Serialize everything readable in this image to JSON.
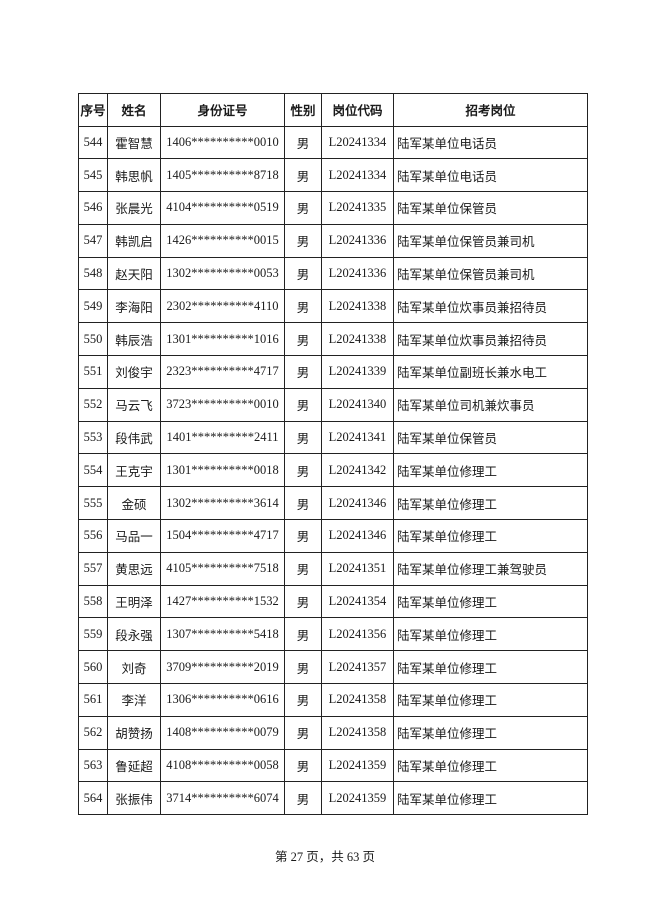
{
  "table": {
    "headers": [
      "序号",
      "姓名",
      "身份证号",
      "性别",
      "岗位代码",
      "招考岗位"
    ],
    "rows": [
      [
        "544",
        "霍智慧",
        "1406**********0010",
        "男",
        "L20241334",
        "陆军某单位电话员"
      ],
      [
        "545",
        "韩思帆",
        "1405**********8718",
        "男",
        "L20241334",
        "陆军某单位电话员"
      ],
      [
        "546",
        "张晨光",
        "4104**********0519",
        "男",
        "L20241335",
        "陆军某单位保管员"
      ],
      [
        "547",
        "韩凯启",
        "1426**********0015",
        "男",
        "L20241336",
        "陆军某单位保管员兼司机"
      ],
      [
        "548",
        "赵天阳",
        "1302**********0053",
        "男",
        "L20241336",
        "陆军某单位保管员兼司机"
      ],
      [
        "549",
        "李海阳",
        "2302**********4110",
        "男",
        "L20241338",
        "陆军某单位炊事员兼招待员"
      ],
      [
        "550",
        "韩辰浩",
        "1301**********1016",
        "男",
        "L20241338",
        "陆军某单位炊事员兼招待员"
      ],
      [
        "551",
        "刘俊宇",
        "2323**********4717",
        "男",
        "L20241339",
        "陆军某单位副班长兼水电工"
      ],
      [
        "552",
        "马云飞",
        "3723**********0010",
        "男",
        "L20241340",
        "陆军某单位司机兼炊事员"
      ],
      [
        "553",
        "段伟武",
        "1401**********2411",
        "男",
        "L20241341",
        "陆军某单位保管员"
      ],
      [
        "554",
        "王克宇",
        "1301**********0018",
        "男",
        "L20241342",
        "陆军某单位修理工"
      ],
      [
        "555",
        "金硕",
        "1302**********3614",
        "男",
        "L20241346",
        "陆军某单位修理工"
      ],
      [
        "556",
        "马品一",
        "1504**********4717",
        "男",
        "L20241346",
        "陆军某单位修理工"
      ],
      [
        "557",
        "黄思远",
        "4105**********7518",
        "男",
        "L20241351",
        "陆军某单位修理工兼驾驶员"
      ],
      [
        "558",
        "王明泽",
        "1427**********1532",
        "男",
        "L20241354",
        "陆军某单位修理工"
      ],
      [
        "559",
        "段永强",
        "1307**********5418",
        "男",
        "L20241356",
        "陆军某单位修理工"
      ],
      [
        "560",
        "刘奇",
        "3709**********2019",
        "男",
        "L20241357",
        "陆军某单位修理工"
      ],
      [
        "561",
        "李洋",
        "1306**********0616",
        "男",
        "L20241358",
        "陆军某单位修理工"
      ],
      [
        "562",
        "胡赞扬",
        "1408**********0079",
        "男",
        "L20241358",
        "陆军某单位修理工"
      ],
      [
        "563",
        "鲁延超",
        "4108**********0058",
        "男",
        "L20241359",
        "陆军某单位修理工"
      ],
      [
        "564",
        "张振伟",
        "3714**********6074",
        "男",
        "L20241359",
        "陆军某单位修理工"
      ]
    ]
  },
  "footer": {
    "page_text": "第 27 页，共 63 页"
  }
}
